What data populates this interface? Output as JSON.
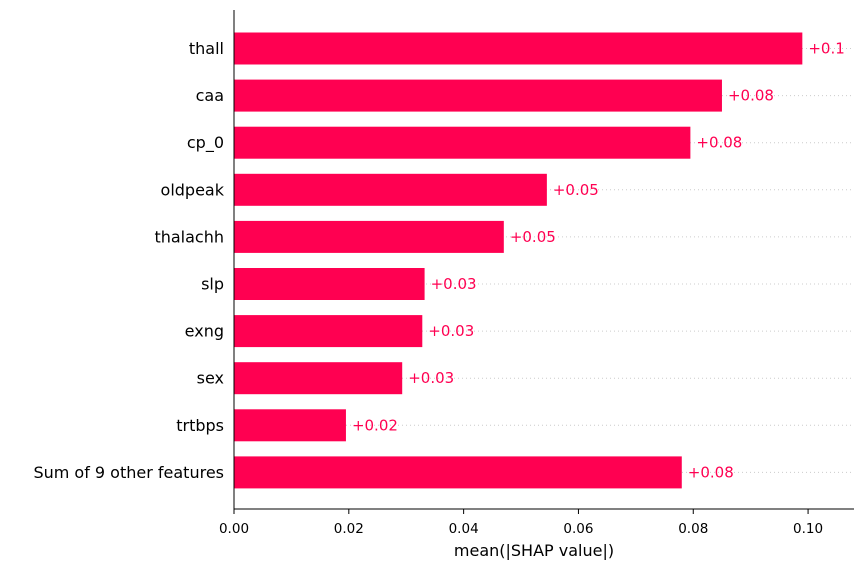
{
  "chart_data": {
    "type": "bar",
    "orientation": "horizontal",
    "xlabel": "mean(|SHAP value|)",
    "xlim": [
      0.0,
      0.108
    ],
    "xticks": [
      0.0,
      0.02,
      0.04,
      0.06,
      0.08,
      0.1
    ],
    "xtick_labels": [
      "0.00",
      "0.02",
      "0.04",
      "0.06",
      "0.08",
      "0.10"
    ],
    "grid": "dotted horizontal row guides",
    "bar_color": "#ff0051",
    "categories": [
      "thall",
      "caa",
      "cp_0",
      "oldpeak",
      "thalachh",
      "slp",
      "exng",
      "sex",
      "trtbps",
      "Sum of 9 other features"
    ],
    "values": [
      0.099,
      0.085,
      0.0795,
      0.0545,
      0.047,
      0.0332,
      0.0328,
      0.0293,
      0.0195,
      0.078
    ],
    "value_labels": [
      "+0.1",
      "+0.08",
      "+0.08",
      "+0.05",
      "+0.05",
      "+0.03",
      "+0.03",
      "+0.03",
      "+0.02",
      "+0.08"
    ]
  }
}
